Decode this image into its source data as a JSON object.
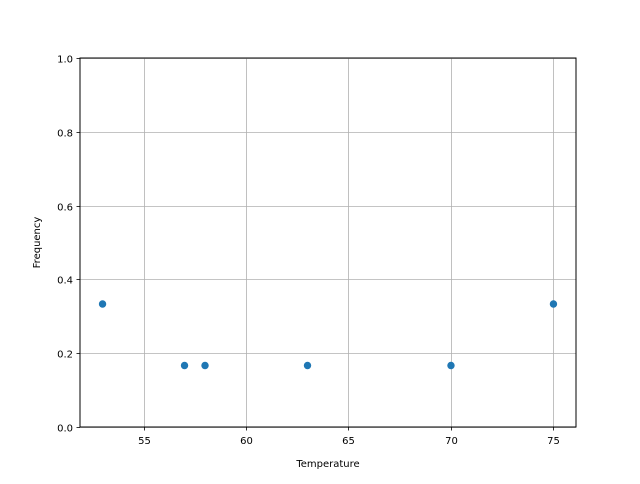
{
  "chart_data": {
    "type": "scatter",
    "title": "",
    "xlabel": "Temperature",
    "ylabel": "Frequency",
    "x": [
      53,
      57,
      58,
      63,
      70,
      75
    ],
    "y": [
      0.3333,
      0.1667,
      0.1667,
      0.1667,
      0.1667,
      0.3333
    ],
    "xlim": [
      51.9,
      76.1
    ],
    "ylim": [
      0.0,
      1.0
    ],
    "xticks": [
      55,
      60,
      65,
      70,
      75
    ],
    "xtick_labels": [
      "55",
      "60",
      "65",
      "70",
      "75"
    ],
    "yticks": [
      0.0,
      0.2,
      0.4,
      0.6,
      0.8,
      1.0
    ],
    "ytick_labels": [
      "0.0",
      "0.2",
      "0.4",
      "0.6",
      "0.8",
      "1.0"
    ],
    "grid": true,
    "marker_color": "#1f77b4",
    "grid_color": "#b0b0b0"
  }
}
